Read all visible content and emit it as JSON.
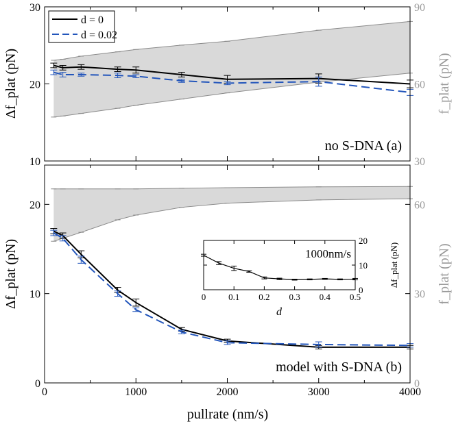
{
  "chart_data": [
    {
      "type": "line",
      "panel": "a",
      "annotation": "no S-DNA (a)",
      "xlabel": "pullrate (nm/s)",
      "ylabel": "Δf_plat (pN)",
      "ylabel_right": "f_plat (pN)",
      "xlim": [
        0,
        4000
      ],
      "ylim": [
        10,
        30
      ],
      "ylim_right": [
        30,
        90
      ],
      "xticks": [
        "0",
        "1000",
        "2000",
        "3000",
        "4000"
      ],
      "yticks": [
        "10",
        "20",
        "30"
      ],
      "yticks_right": [
        "30",
        "60",
        "90"
      ],
      "legend": {
        "position": "top-left",
        "entries": [
          "d = 0",
          "d = 0.02"
        ]
      },
      "series": [
        {
          "name": "d = 0",
          "color": "#000000",
          "dash": "solid",
          "x": [
            100,
            200,
            400,
            800,
            1000,
            1500,
            2000,
            3000,
            4000
          ],
          "y": [
            22.4,
            22.1,
            22.2,
            21.9,
            21.8,
            21.2,
            20.6,
            20.7,
            20.0
          ],
          "err": [
            0.3,
            0.3,
            0.3,
            0.3,
            0.4,
            0.3,
            0.5,
            0.6,
            0.5
          ]
        },
        {
          "name": "d = 0.02",
          "color": "#2255bb",
          "dash": "dashed",
          "x": [
            100,
            200,
            400,
            800,
            1000,
            1500,
            2000,
            3000,
            4000
          ],
          "y": [
            21.5,
            21.2,
            21.2,
            21.1,
            21.0,
            20.4,
            20.1,
            20.3,
            18.9
          ],
          "err": [
            0.3,
            0.3,
            0.2,
            0.3,
            0.2,
            0.2,
            0.2,
            0.6,
            0.4
          ]
        }
      ],
      "band": {
        "color": "#d9d9d9",
        "x": [
          100,
          200,
          400,
          800,
          1000,
          1500,
          2000,
          3000,
          4000
        ],
        "upper": [
          69.2,
          69.6,
          70.8,
          72.5,
          73.4,
          75.1,
          76.6,
          80.9,
          84.3
        ],
        "lower": [
          47.1,
          47.5,
          48.5,
          50.5,
          51.7,
          54.1,
          56.5,
          60.7,
          64.2
        ]
      }
    },
    {
      "type": "line",
      "panel": "b",
      "annotation": "model with S-DNA (b)",
      "xlabel": "pullrate (nm/s)",
      "ylabel": "Δf_plat (pN)",
      "ylabel_right": "f_plat (pN)",
      "xlim": [
        0,
        4000
      ],
      "ylim": [
        0,
        24.4
      ],
      "ylim_right": [
        0,
        73.2
      ],
      "xticks": [
        "0",
        "1000",
        "2000",
        "3000",
        "4000"
      ],
      "yticks": [
        "0",
        "10",
        "20"
      ],
      "yticks_right": [
        "0",
        "30",
        "60"
      ],
      "series": [
        {
          "name": "d = 0",
          "color": "#000000",
          "dash": "solid",
          "x": [
            100,
            200,
            400,
            800,
            1000,
            1500,
            2000,
            3000,
            4000
          ],
          "y": [
            17.0,
            16.5,
            14.4,
            10.4,
            9.0,
            6.0,
            4.7,
            4.0,
            4.0
          ],
          "err": [
            0.3,
            0.3,
            0.4,
            0.3,
            0.4,
            0.2,
            0.2,
            0.2,
            0.2
          ]
        },
        {
          "name": "d = 0.02",
          "color": "#2255bb",
          "dash": "dashed",
          "x": [
            100,
            200,
            400,
            800,
            1000,
            1500,
            2000,
            3000,
            4000
          ],
          "y": [
            16.8,
            16.2,
            13.8,
            10.0,
            8.2,
            5.7,
            4.5,
            4.3,
            4.2
          ],
          "err": [
            0.3,
            0.3,
            0.4,
            0.3,
            0.2,
            0.2,
            0.2,
            0.3,
            0.2
          ]
        }
      ],
      "band": {
        "color": "#d9d9d9",
        "x": [
          100,
          200,
          400,
          800,
          1000,
          1500,
          2000,
          3000,
          4000
        ],
        "upper": [
          65.2,
          65.2,
          65.2,
          65.2,
          65.2,
          65.4,
          65.6,
          65.9,
          66.0
        ],
        "lower": [
          47.6,
          48.6,
          50.6,
          54.8,
          56.4,
          59.0,
          60.4,
          61.5,
          61.9
        ]
      }
    },
    {
      "type": "line",
      "panel": "inset",
      "annotation": "1000nm/s",
      "xlabel": "d",
      "ylabel": "Δf_plat (pN)",
      "xlim": [
        0,
        0.5
      ],
      "ylim": [
        0,
        20
      ],
      "xticks": [
        "0",
        "0.1",
        "0.2",
        "0.3",
        "0.4",
        "0.5"
      ],
      "yticks": [
        "0",
        "10",
        "20"
      ],
      "series": [
        {
          "name": "",
          "color": "#000000",
          "dash": "solid",
          "x": [
            0.0,
            0.05,
            0.1,
            0.15,
            0.2,
            0.25,
            0.3,
            0.35,
            0.4,
            0.45,
            0.5
          ],
          "y": [
            14.0,
            10.8,
            8.7,
            7.4,
            4.8,
            4.4,
            4.1,
            4.2,
            4.4,
            4.2,
            4.3
          ],
          "err": [
            0.4,
            0.6,
            0.9,
            0.3,
            0.4,
            0.3,
            0.2,
            0.2,
            0.2,
            0.2,
            0.3
          ]
        }
      ]
    }
  ]
}
